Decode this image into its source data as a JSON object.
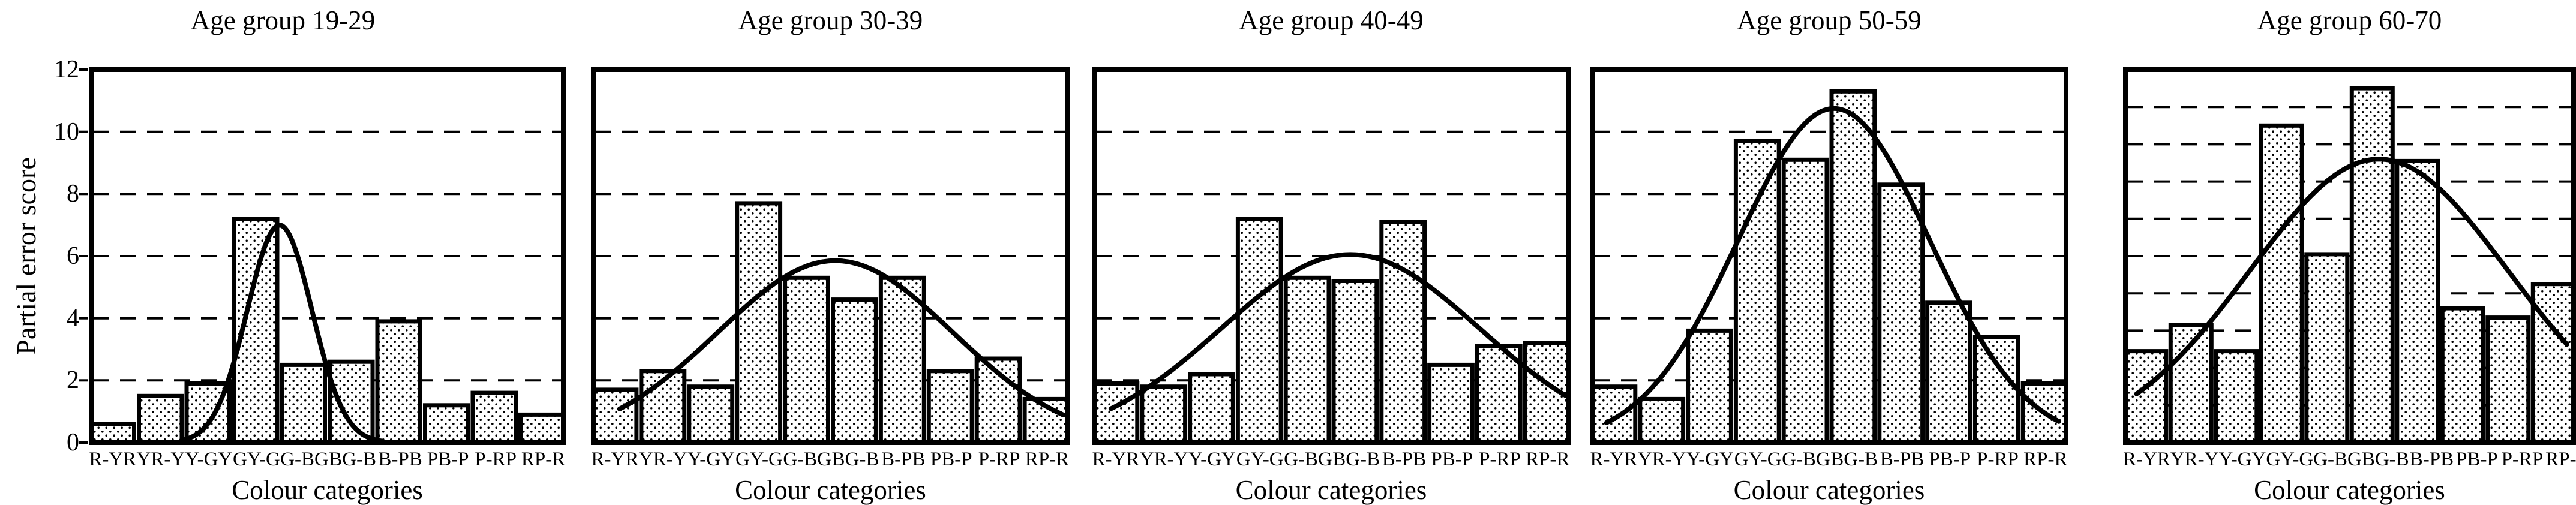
{
  "figure": {
    "background": "#ffffff",
    "ink": "#000000",
    "ylabel": "Partial error score",
    "xlabel": "Colour categories",
    "categories": [
      "R-YR",
      "YR-Y",
      "Y-GY",
      "GY-G",
      "G-BG",
      "BG-B",
      "B-PB",
      "PB-P",
      "P-RP",
      "RP-R"
    ],
    "y_tick_labels": [
      "0",
      "2",
      "4",
      "6",
      "8",
      "10",
      "12"
    ],
    "y_tick_values": [
      0,
      2,
      4,
      6,
      8,
      10,
      12
    ]
  },
  "chart_data": [
    {
      "type": "bar",
      "title": "Age group 19-29",
      "ylabel": "Partial error score",
      "xlabel": "Colour categories",
      "show_y_axis": true,
      "ylim": [
        0,
        12
      ],
      "grid_values": [
        2,
        4,
        6,
        8,
        10
      ],
      "y_tick_labels": [
        "0",
        "2",
        "4",
        "6",
        "8",
        "10",
        "12"
      ],
      "y_tick_values": [
        0,
        2,
        4,
        6,
        8,
        10,
        12
      ],
      "categories": [
        "R-YR",
        "YR-Y",
        "Y-GY",
        "GY-G",
        "G-BG",
        "BG-B",
        "B-PB",
        "PB-P",
        "P-RP",
        "RP-R"
      ],
      "values": [
        0.6,
        1.5,
        1.9,
        7.2,
        2.5,
        2.6,
        3.9,
        1.2,
        1.6,
        0.9
      ],
      "fit_curve": {
        "shape": "normal",
        "peak": 7.0,
        "center": 3.5,
        "sigma": 0.68,
        "x_start": 1.45,
        "x_end": 5.65
      },
      "legend": null,
      "grid_on": true
    },
    {
      "type": "bar",
      "title": "Age group 30-39",
      "ylabel": "Partial error score",
      "xlabel": "Colour categories",
      "show_y_axis": false,
      "ylim": [
        0,
        12
      ],
      "grid_values": [
        2,
        4,
        6,
        8,
        10
      ],
      "categories": [
        "R-YR",
        "YR-Y",
        "Y-GY",
        "GY-G",
        "G-BG",
        "BG-B",
        "B-PB",
        "PB-P",
        "P-RP",
        "RP-R"
      ],
      "values": [
        1.7,
        2.3,
        1.8,
        7.7,
        5.3,
        4.6,
        5.3,
        2.3,
        2.7,
        1.4
      ],
      "fit_curve": {
        "shape": "normal",
        "peak": 5.85,
        "center": 4.6,
        "sigma": 2.45,
        "x_start": 0.1,
        "x_end": 9.35
      },
      "legend": null,
      "grid_on": true
    },
    {
      "type": "bar",
      "title": "Age group 40-49",
      "ylabel": "Partial error score",
      "xlabel": "Colour categories",
      "show_y_axis": false,
      "ylim": [
        0,
        12
      ],
      "grid_values": [
        2,
        4,
        6,
        8,
        10
      ],
      "categories": [
        "R-YR",
        "YR-Y",
        "Y-GY",
        "GY-G",
        "G-BG",
        "BG-B",
        "B-PB",
        "PB-P",
        "P-RP",
        "RP-R"
      ],
      "values": [
        1.9,
        1.8,
        2.2,
        7.2,
        5.3,
        5.2,
        7.1,
        2.5,
        3.1,
        3.2
      ],
      "fit_curve": {
        "shape": "normal",
        "peak": 6.05,
        "center": 4.9,
        "sigma": 2.7,
        "x_start": -0.1,
        "x_end": 9.4
      },
      "legend": null,
      "grid_on": true
    },
    {
      "type": "bar",
      "title": "Age group 50-59",
      "ylabel": "Partial error score",
      "xlabel": "Colour categories",
      "show_y_axis": false,
      "ylim": [
        0,
        12
      ],
      "grid_values": [
        2,
        4,
        6,
        8,
        10
      ],
      "categories": [
        "R-YR",
        "YR-Y",
        "Y-GY",
        "GY-G",
        "G-BG",
        "BG-B",
        "B-PB",
        "PB-P",
        "P-RP",
        "RP-R"
      ],
      "values": [
        1.8,
        1.4,
        3.6,
        9.7,
        9.1,
        11.3,
        8.3,
        4.5,
        3.4,
        1.9
      ],
      "fit_curve": {
        "shape": "normal",
        "peak": 10.75,
        "center": 4.6,
        "sigma": 2.0,
        "x_start": -0.15,
        "x_end": 9.3
      },
      "legend": null,
      "grid_on": true
    },
    {
      "type": "bar",
      "title": "Age group 60-70",
      "ylabel": "Partial error score",
      "xlabel": "Colour categories",
      "show_y_axis": false,
      "ylim": [
        0,
        20
      ],
      "grid_values": [
        2,
        4,
        6,
        8,
        10,
        12,
        14,
        16,
        18
      ],
      "categories": [
        "R-YR",
        "YR-Y",
        "Y-GY",
        "GY-G",
        "G-BG",
        "BG-B",
        "B-PB",
        "PB-P",
        "P-RP",
        "RP-R"
      ],
      "values": [
        4.9,
        6.3,
        4.9,
        17.0,
        10.1,
        19.0,
        15.1,
        7.2,
        6.7,
        8.5
      ],
      "fit_curve": {
        "shape": "normal",
        "peak": 15.2,
        "center": 5.15,
        "sigma": 2.85,
        "x_start": -0.2,
        "x_end": 9.3
      },
      "legend": null,
      "grid_on": true
    }
  ]
}
